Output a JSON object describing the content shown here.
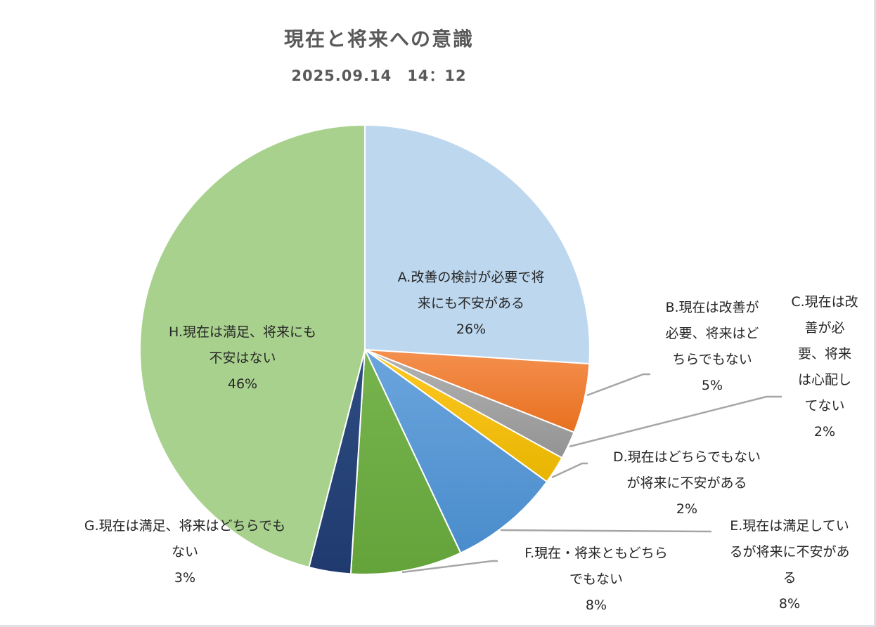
{
  "chart_data": {
    "type": "pie",
    "title": "現在と将来への意識",
    "subtitle": "2025.09.14　14：12",
    "start_angle_deg": 0,
    "direction": "clockwise",
    "legend": "none (data labels with leader lines)",
    "categories": [
      "A.改善の検討が必要で将来にも不安がある",
      "B.現在は改善が必要、将来はどちらでもない",
      "C.現在は改善が必要、将来は心配してない",
      "D.現在はどちらでもないが将来に不安がある",
      "E.現在は満足しているが将来に不安がある",
      "F.現在・将来ともどちらでもない",
      "G.現在は満足、将来はどちらでもない",
      "H.現在は満足、将来にも不安はない"
    ],
    "values": [
      26,
      5,
      2,
      2,
      8,
      8,
      3,
      46
    ],
    "unit": "%",
    "colors": [
      "#bdd7ee",
      "#ed7d31",
      "#a5a5a5",
      "#ffc000",
      "#5b9bd5",
      "#70ad47",
      "#264478",
      "#a9d18e"
    ]
  },
  "header": {
    "title": "現在と将来への意識",
    "subtitle": "2025.09.14　14：12"
  },
  "labels": [
    {
      "name_lines": [
        "A.改善の検討が必要で将",
        "来にも不安がある"
      ],
      "pct": "26%"
    },
    {
      "name_lines": [
        "B.現在は改善が",
        "必要、将来はど",
        "ちらでもない"
      ],
      "pct": "5%"
    },
    {
      "name_lines": [
        "C.現在は改",
        "善が必",
        "要、将来",
        "は心配し",
        "てない"
      ],
      "pct": "2%"
    },
    {
      "name_lines": [
        "D.現在はどちらでもない",
        "が将来に不安がある"
      ],
      "pct": "2%"
    },
    {
      "name_lines": [
        "E.現在は満足してい",
        "るが将来に不安があ",
        "る"
      ],
      "pct": "8%"
    },
    {
      "name_lines": [
        "F.現在・将来ともどちら",
        "でもない"
      ],
      "pct": "8%"
    },
    {
      "name_lines": [
        "G.現在は満足、将来はどちらでも",
        "ない"
      ],
      "pct": "3%"
    },
    {
      "name_lines": [
        "H.現在は満足、将来にも",
        "不安はない"
      ],
      "pct": "46%"
    }
  ]
}
